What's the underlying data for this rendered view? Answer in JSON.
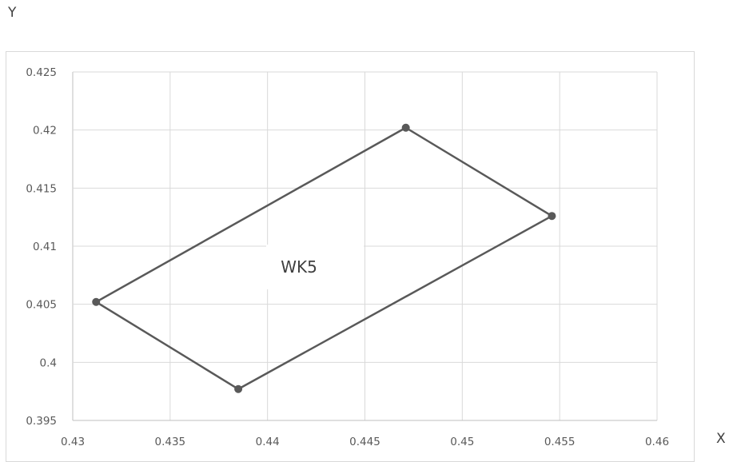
{
  "chart_data": {
    "type": "scatter",
    "title": "",
    "xlabel": "X",
    "ylabel": "Y",
    "xlim": [
      0.43,
      0.46
    ],
    "ylim": [
      0.395,
      0.425
    ],
    "x_ticks": [
      "0.43",
      "0.435",
      "0.44",
      "0.445",
      "0.45",
      "0.455",
      "0.46"
    ],
    "y_ticks": [
      "0.425",
      "0.42",
      "0.415",
      "0.41",
      "0.405",
      "0.4",
      "0.395"
    ],
    "grid": true,
    "series": [
      {
        "color": "#595959",
        "closed": true,
        "points": [
          {
            "x": 0.4312,
            "y": 0.4052
          },
          {
            "x": 0.4471,
            "y": 0.4202
          },
          {
            "x": 0.4546,
            "y": 0.4126
          },
          {
            "x": 0.4385,
            "y": 0.3977
          },
          {
            "x": 0.4312,
            "y": 0.4052
          }
        ]
      }
    ],
    "annotations": [
      {
        "text": "WK5",
        "x": 0.4418,
        "y": 0.4079
      }
    ]
  }
}
